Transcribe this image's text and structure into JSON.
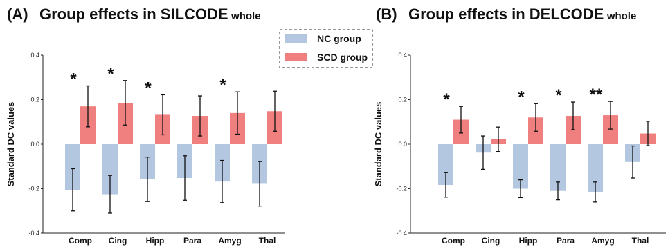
{
  "legend": {
    "items": [
      {
        "label": "NC group",
        "color": "#b4c7e0"
      },
      {
        "label": "SCD group",
        "color": "#f0807f"
      }
    ]
  },
  "chart_data": [
    {
      "type": "bar",
      "panel": "(A)",
      "title_main": "Group effects in SILCODE",
      "title_sub": "whole",
      "ylabel": "Standard DC values",
      "ylim": [
        -0.4,
        0.4
      ],
      "yticks": [
        "0.4",
        "0.2",
        "0.0",
        "-0.2",
        "-0.4"
      ],
      "categories": [
        "Comp",
        "Cing",
        "Hipp",
        "Para",
        "Amyg",
        "Thal"
      ],
      "series": [
        {
          "name": "NC group",
          "values": [
            -0.205,
            -0.225,
            -0.158,
            -0.152,
            -0.168,
            -0.178
          ],
          "errors": [
            0.095,
            0.085,
            0.1,
            0.1,
            0.095,
            0.1
          ]
        },
        {
          "name": "SCD group",
          "values": [
            0.17,
            0.186,
            0.132,
            0.127,
            0.14,
            0.148
          ],
          "errors": [
            0.092,
            0.1,
            0.09,
            0.09,
            0.095,
            0.09
          ]
        }
      ],
      "significance": [
        "*",
        "*",
        "*",
        "",
        "*",
        ""
      ]
    },
    {
      "type": "bar",
      "panel": "(B)",
      "title_main": "Group effects in DELCODE",
      "title_sub": "whole",
      "ylabel": "Standard DC values",
      "ylim": [
        -0.4,
        0.4
      ],
      "yticks": [
        "0.4",
        "0.2",
        "0.0",
        "-0.2",
        "-0.4"
      ],
      "categories": [
        "Comp",
        "Cing",
        "Hipp",
        "Para",
        "Amyg",
        "Thal"
      ],
      "series": [
        {
          "name": "NC group",
          "values": [
            -0.183,
            -0.038,
            -0.2,
            -0.21,
            -0.215,
            -0.08
          ],
          "errors": [
            0.055,
            0.075,
            0.04,
            0.04,
            0.045,
            0.072
          ]
        },
        {
          "name": "SCD group",
          "values": [
            0.11,
            0.022,
            0.12,
            0.127,
            0.13,
            0.048
          ],
          "errors": [
            0.06,
            0.055,
            0.062,
            0.062,
            0.062,
            0.055
          ]
        }
      ],
      "significance": [
        "*",
        "",
        "*",
        "*",
        "**",
        ""
      ]
    }
  ]
}
